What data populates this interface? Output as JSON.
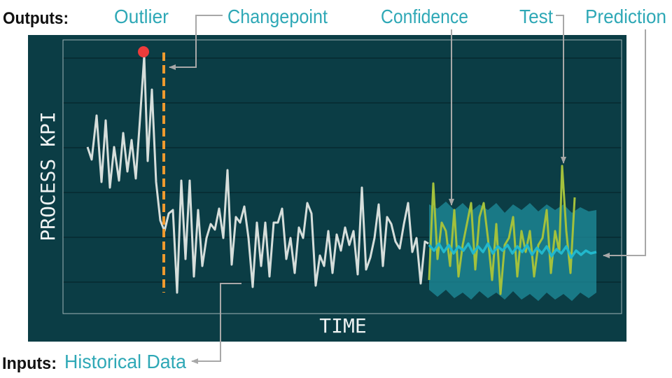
{
  "labels": {
    "outputs": "Outputs:",
    "inputs": "Inputs:"
  },
  "annotations": {
    "outlier": "Outlier",
    "changepoint": "Changepoint",
    "confidence": "Confidence",
    "test": "Test",
    "prediction": "Prediction",
    "historical": "Historical Data"
  },
  "axes": {
    "y": "PROCESS KPI",
    "x": "TIME"
  }
}
